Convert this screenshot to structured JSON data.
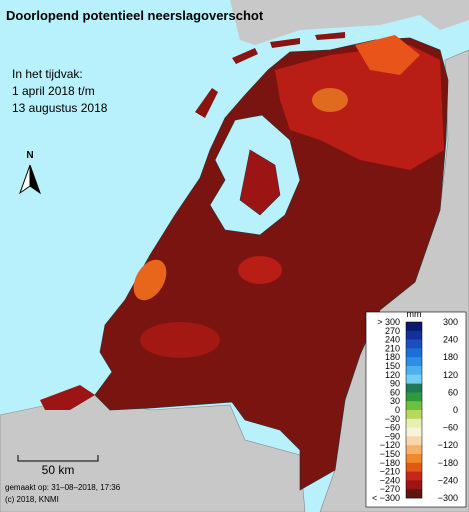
{
  "header": {
    "title": "Doorlopend potentieel neerslagoverschot",
    "period": [
      "In het tijdvak:",
      "1 april 2018 t/m",
      "13 augustus 2018"
    ]
  },
  "north": "N",
  "scale": "50 km",
  "footer": [
    "gemaakt op: 31–08–2018, 17:36",
    "(c) 2018, KNMI"
  ],
  "legend": {
    "unit": "mm",
    "left_labels": [
      "> 300",
      "270",
      "240",
      "210",
      "180",
      "150",
      "120",
      "90",
      "60",
      "30",
      "0",
      "−30",
      "−60",
      "−90",
      "−120",
      "−150",
      "−180",
      "−210",
      "−240",
      "−270",
      "< −300"
    ],
    "right_labels": [
      "300",
      "240",
      "180",
      "120",
      "60",
      "0",
      "−60",
      "−120",
      "−180",
      "−240",
      "−300"
    ],
    "colors": [
      "#0b1a6c",
      "#12309a",
      "#1a4fbf",
      "#1d6fd8",
      "#2c90e6",
      "#4db1ee",
      "#73cff1",
      "#1f7a55",
      "#2f9a3c",
      "#6dbf3c",
      "#b7d95b",
      "#e9eeb2",
      "#f7f2d9",
      "#f9d6a6",
      "#f6b168",
      "#f0892b",
      "#e05a16",
      "#c7261a",
      "#9c1414",
      "#5e1410"
    ]
  }
}
